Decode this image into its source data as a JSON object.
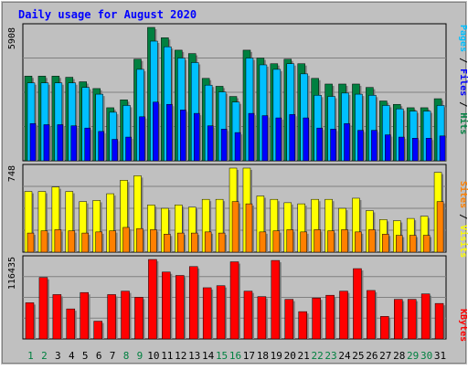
{
  "colors": {
    "background": "#c0c0c0",
    "title": "#0000ff",
    "axis_label": "#000000",
    "hits": "#008040",
    "files": "#00c0ff",
    "pages": "#0000ff",
    "visits": "#ffff00",
    "sites": "#ff8000",
    "kbytes": "#ff0000",
    "weekend_day": "#008040",
    "weekday": "#000000"
  },
  "chart_data": {
    "type": "bar",
    "title": "Daily usage for August 2020",
    "categories": [
      "1",
      "2",
      "3",
      "4",
      "5",
      "6",
      "7",
      "8",
      "9",
      "10",
      "11",
      "12",
      "13",
      "14",
      "15",
      "16",
      "17",
      "18",
      "19",
      "20",
      "21",
      "22",
      "23",
      "24",
      "25",
      "26",
      "27",
      "28",
      "29",
      "30",
      "31"
    ],
    "weekend_days": [
      "1",
      "2",
      "8",
      "9",
      "15",
      "16",
      "22",
      "23",
      "29",
      "30"
    ],
    "panels": [
      {
        "id": "top",
        "ymax_label": "5908",
        "ymax": 5908,
        "right_labels": [
          "Pages",
          "Files",
          "Hits"
        ],
        "series": [
          {
            "name": "Hits",
            "values": [
              3750,
              3750,
              3750,
              3700,
              3500,
              3200,
              2350,
              2700,
              4500,
              5908,
              5450,
              4900,
              4750,
              3650,
              3300,
              2850,
              4900,
              4550,
              4300,
              4500,
              4300,
              3650,
              3400,
              3400,
              3400,
              3250,
              2650,
              2500,
              2350,
              2350,
              2750
            ]
          },
          {
            "name": "Files",
            "values": [
              3450,
              3450,
              3450,
              3450,
              3250,
              2950,
              2150,
              2450,
              4050,
              5300,
              5050,
              4550,
              4350,
              3350,
              3050,
              2600,
              4550,
              4250,
              4050,
              4300,
              3850,
              2900,
              2850,
              3000,
              2950,
              2900,
              2450,
              2300,
              2200,
              2200,
              2450
            ]
          },
          {
            "name": "Pages",
            "values": [
              1650,
              1600,
              1600,
              1550,
              1450,
              1300,
              950,
              1050,
              1950,
              2600,
              2500,
              2250,
              2100,
              1550,
              1400,
              1250,
              2100,
              2000,
              1900,
              2050,
              1900,
              1450,
              1400,
              1650,
              1350,
              1350,
              1150,
              1050,
              1000,
              1000,
              1100
            ]
          }
        ]
      },
      {
        "id": "middle",
        "ymax_label": "748",
        "ymax": 748,
        "right_labels": [
          "Sites",
          "Visits"
        ],
        "series": [
          {
            "name": "Visits",
            "values": [
              540,
              540,
              580,
              540,
              450,
              460,
              520,
              640,
              680,
              420,
              390,
              420,
              400,
              470,
              470,
              748,
              748,
              500,
              470,
              440,
              430,
              470,
              470,
              390,
              480,
              370,
              290,
              280,
              300,
              320,
              710
            ]
          },
          {
            "name": "Sites",
            "values": [
              170,
              190,
              200,
              190,
              170,
              180,
              190,
              220,
              210,
              200,
              160,
              170,
              170,
              180,
              170,
              450,
              430,
              180,
              190,
              200,
              180,
              200,
              190,
              200,
              180,
              200,
              160,
              150,
              150,
              150,
              450
            ]
          }
        ]
      },
      {
        "id": "bottom",
        "ymax_label": "116435",
        "ymax": 116435,
        "right_labels": [
          "KBytes"
        ],
        "series": [
          {
            "name": "KBytes",
            "values": [
              53000,
              90000,
              65000,
              44000,
              68000,
              26000,
              65000,
              70000,
              61000,
              116435,
              98000,
              93000,
              106000,
              75000,
              78000,
              113000,
              70000,
              62000,
              115000,
              58000,
              40000,
              60000,
              64000,
              70000,
              103000,
              71000,
              33000,
              58000,
              58000,
              66000,
              52000
            ]
          }
        ]
      }
    ]
  }
}
